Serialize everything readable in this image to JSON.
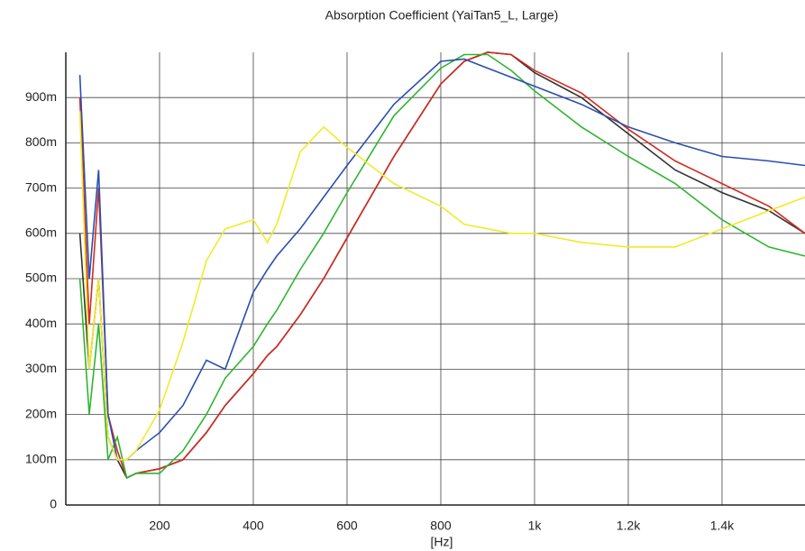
{
  "chart_data": {
    "type": "line",
    "title": "Absorption Coefficient (YaiTan5_L, Large)",
    "x_label": "[Hz]",
    "x": [
      30,
      50,
      70,
      90,
      110,
      130,
      150,
      200,
      250,
      300,
      340,
      400,
      430,
      450,
      500,
      550,
      600,
      700,
      800,
      850,
      900,
      950,
      1000,
      1100,
      1200,
      1300,
      1400,
      1500,
      1577
    ],
    "series": [
      {
        "name": "black",
        "color": "#333333",
        "values": [
          0.6,
          0.3,
          0.5,
          0.15,
          0.1,
          0.06,
          0.07,
          0.08,
          0.1,
          0.16,
          0.22,
          0.29,
          0.33,
          0.35,
          0.42,
          0.5,
          0.59,
          0.77,
          0.93,
          0.98,
          1.0,
          0.995,
          0.955,
          0.9,
          0.82,
          0.74,
          0.69,
          0.65,
          0.6
        ]
      },
      {
        "name": "red",
        "color": "#d42a20",
        "values": [
          0.9,
          0.4,
          0.7,
          0.2,
          0.12,
          0.06,
          0.07,
          0.08,
          0.1,
          0.16,
          0.22,
          0.29,
          0.33,
          0.35,
          0.42,
          0.5,
          0.59,
          0.77,
          0.93,
          0.98,
          1.0,
          0.995,
          0.96,
          0.91,
          0.83,
          0.76,
          0.71,
          0.66,
          0.6
        ]
      },
      {
        "name": "green",
        "color": "#2fb52f",
        "values": [
          0.5,
          0.2,
          0.4,
          0.1,
          0.15,
          0.06,
          0.07,
          0.07,
          0.12,
          0.2,
          0.28,
          0.35,
          0.4,
          0.43,
          0.52,
          0.6,
          0.69,
          0.86,
          0.965,
          0.995,
          0.995,
          0.96,
          0.915,
          0.835,
          0.77,
          0.71,
          0.63,
          0.57,
          0.55
        ]
      },
      {
        "name": "blue",
        "color": "#2a4fb0",
        "values": [
          0.95,
          0.5,
          0.74,
          0.2,
          0.1,
          0.1,
          0.12,
          0.16,
          0.22,
          0.32,
          0.3,
          0.47,
          0.52,
          0.55,
          0.61,
          0.68,
          0.75,
          0.885,
          0.98,
          0.985,
          0.965,
          0.945,
          0.925,
          0.885,
          0.835,
          0.8,
          0.77,
          0.76,
          0.75
        ]
      },
      {
        "name": "yellow",
        "color": "#f0ea2a",
        "values": [
          0.87,
          0.3,
          0.5,
          0.15,
          0.1,
          0.1,
          0.12,
          0.21,
          0.36,
          0.54,
          0.61,
          0.63,
          0.58,
          0.62,
          0.78,
          0.835,
          0.79,
          0.71,
          0.66,
          0.62,
          0.61,
          0.6,
          0.6,
          0.58,
          0.57,
          0.57,
          0.61,
          0.65,
          0.68
        ]
      }
    ],
    "xlim": [
      0,
      1577
    ],
    "ylim": [
      0,
      1.0
    ],
    "xticks": [
      200,
      400,
      600,
      800,
      {
        "value": 1000,
        "label": "1k"
      },
      {
        "value": 1200,
        "label": "1.2k"
      },
      {
        "value": 1400,
        "label": "1.4k"
      }
    ],
    "yticks": [
      0,
      {
        "value": 0.1,
        "label": "100m"
      },
      {
        "value": 0.2,
        "label": "200m"
      },
      {
        "value": 0.3,
        "label": "300m"
      },
      {
        "value": 0.4,
        "label": "400m"
      },
      {
        "value": 0.5,
        "label": "500m"
      },
      {
        "value": 0.6,
        "label": "600m"
      },
      {
        "value": 0.7,
        "label": "700m"
      },
      {
        "value": 0.8,
        "label": "800m"
      },
      {
        "value": 0.9,
        "label": "900m"
      }
    ],
    "grid": true
  }
}
